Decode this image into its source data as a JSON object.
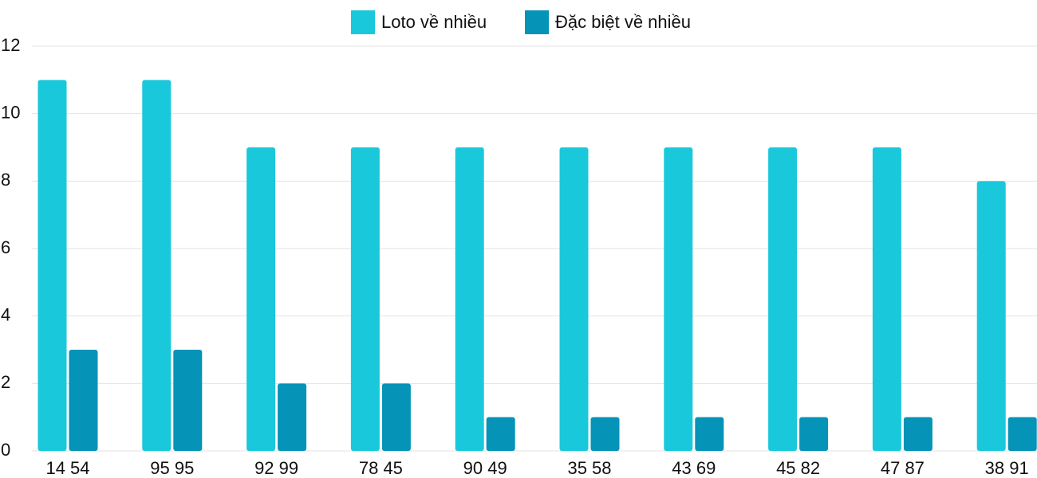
{
  "chart_data": {
    "type": "bar",
    "categories": [
      "14 54",
      "95 95",
      "92 99",
      "78 45",
      "90 49",
      "35 58",
      "43 69",
      "45 82",
      "47 87",
      "38 91"
    ],
    "series": [
      {
        "name": "Loto về nhiều",
        "color": "#1ac8db",
        "values": [
          11,
          11,
          9,
          9,
          9,
          9,
          9,
          9,
          9,
          8
        ]
      },
      {
        "name": "Đặc biệt về nhiều",
        "color": "#0593b8",
        "values": [
          3,
          3,
          2,
          2,
          1,
          1,
          1,
          1,
          1,
          1
        ]
      }
    ],
    "ylim": [
      0,
      12
    ],
    "yticks": [
      0,
      2,
      4,
      6,
      8,
      10,
      12
    ],
    "grid": true,
    "legend": "top"
  }
}
